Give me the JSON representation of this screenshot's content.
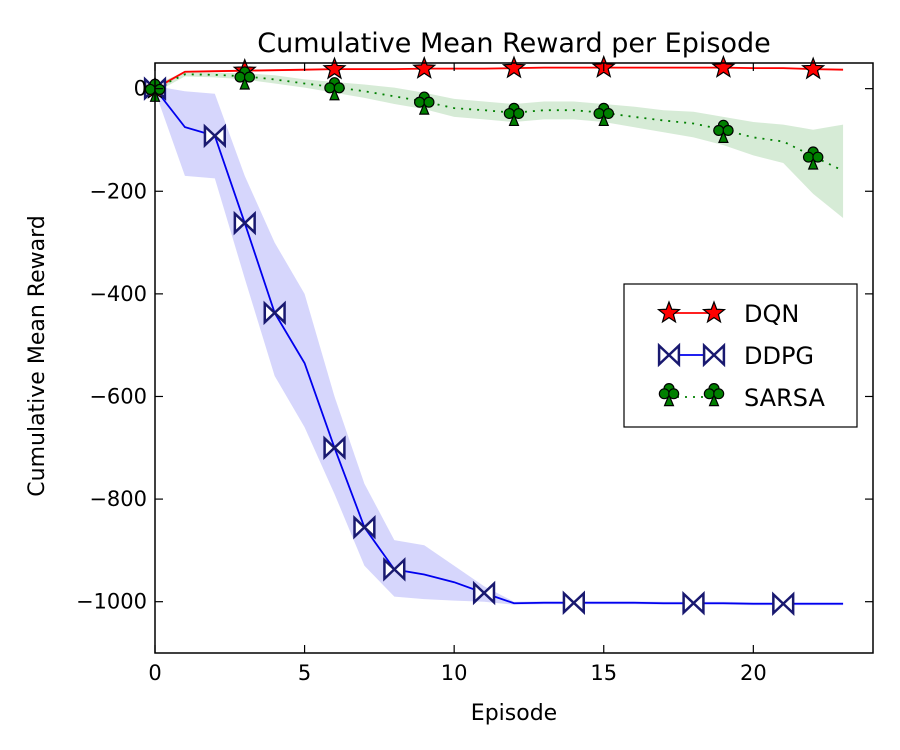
{
  "chart_data": {
    "type": "line",
    "title": "Cumulative Mean Reward per Episode",
    "xlabel": "Episode",
    "ylabel": "Cumulative Mean Reward",
    "xlim": [
      0,
      24
    ],
    "ylim": [
      -1100,
      50
    ],
    "xticks": [
      0,
      5,
      10,
      15,
      20
    ],
    "yticks": [
      0,
      -200,
      -400,
      -600,
      -800,
      -1000
    ],
    "legend_position": "center-right",
    "grid": false,
    "series": [
      {
        "name": "DQN",
        "color": "#ff0000",
        "marker": "star",
        "marker_color": "#ff0000",
        "line_style": "solid",
        "x": [
          0,
          1,
          2,
          3,
          4,
          5,
          6,
          7,
          8,
          9,
          10,
          11,
          12,
          13,
          14,
          15,
          16,
          17,
          18,
          19,
          20,
          21,
          22,
          23
        ],
        "y": [
          0,
          33,
          34,
          35,
          36,
          37,
          38,
          38,
          38,
          39,
          39,
          39,
          40,
          41,
          41,
          41,
          41,
          41,
          41,
          41,
          40,
          40,
          38,
          37
        ],
        "band_low": [
          -5,
          31,
          32,
          33,
          34,
          35,
          36,
          36,
          36,
          37,
          37,
          37,
          38,
          39,
          39,
          39,
          39,
          39,
          39,
          39,
          38,
          38,
          36,
          35
        ],
        "band_high": [
          5,
          35,
          36,
          37,
          38,
          39,
          40,
          40,
          40,
          41,
          41,
          41,
          42,
          43,
          43,
          43,
          43,
          43,
          43,
          43,
          42,
          42,
          40,
          39
        ],
        "marker_x": [
          0,
          3,
          6,
          9,
          12,
          15,
          19,
          22
        ]
      },
      {
        "name": "DDPG",
        "color": "#0000ee",
        "marker": "bowtie",
        "marker_color": "#ffffff",
        "line_style": "solid",
        "x": [
          0,
          1,
          2,
          3,
          4,
          5,
          6,
          7,
          8,
          9,
          10,
          11,
          12,
          13,
          14,
          15,
          16,
          17,
          18,
          19,
          20,
          21,
          22,
          23
        ],
        "y": [
          0,
          -75,
          -92,
          -262,
          -437,
          -535,
          -700,
          -855,
          -937,
          -947,
          -962,
          -983,
          -1003,
          -1002,
          -1002,
          -1002,
          -1002,
          -1003,
          -1003,
          -1003,
          -1004,
          -1004,
          -1004,
          -1004
        ],
        "band_low": [
          -5,
          -170,
          -175,
          -370,
          -560,
          -660,
          -790,
          -930,
          -990,
          -995,
          -998,
          -1000,
          -1006,
          -1005,
          -1005,
          -1005,
          -1005,
          -1006,
          -1006,
          -1006,
          -1007,
          -1007,
          -1007,
          -1007
        ],
        "band_high": [
          5,
          -5,
          -10,
          -170,
          -300,
          -400,
          -600,
          -770,
          -880,
          -890,
          -930,
          -970,
          -1000,
          -999,
          -999,
          -999,
          -999,
          -1000,
          -1000,
          -1000,
          -1001,
          -1001,
          -1001,
          -1001
        ],
        "marker_x": [
          0,
          2,
          3,
          4,
          6,
          7,
          8,
          11,
          14,
          18,
          21
        ]
      },
      {
        "name": "SARSA",
        "color": "#008000",
        "marker": "club",
        "marker_color": "#008000",
        "line_style": "dotted",
        "x": [
          0,
          1,
          2,
          3,
          4,
          5,
          6,
          7,
          8,
          9,
          10,
          11,
          12,
          13,
          14,
          15,
          16,
          17,
          18,
          19,
          20,
          21,
          22,
          23
        ],
        "y": [
          0,
          28,
          27,
          24,
          18,
          10,
          3,
          -5,
          -15,
          -25,
          -38,
          -42,
          -47,
          -42,
          -42,
          -47,
          -55,
          -62,
          -68,
          -80,
          -95,
          -103,
          -132,
          -160
        ],
        "band_low": [
          -8,
          24,
          22,
          18,
          10,
          2,
          -8,
          -18,
          -30,
          -40,
          -55,
          -60,
          -65,
          -60,
          -60,
          -65,
          -75,
          -85,
          -95,
          -110,
          -130,
          -145,
          -205,
          -252
        ],
        "band_high": [
          8,
          32,
          31,
          30,
          26,
          18,
          13,
          8,
          2,
          -8,
          -20,
          -25,
          -30,
          -25,
          -25,
          -30,
          -35,
          -42,
          -45,
          -55,
          -65,
          -70,
          -80,
          -70
        ],
        "marker_x": [
          0,
          3,
          6,
          9,
          12,
          15,
          19,
          22
        ]
      }
    ]
  }
}
